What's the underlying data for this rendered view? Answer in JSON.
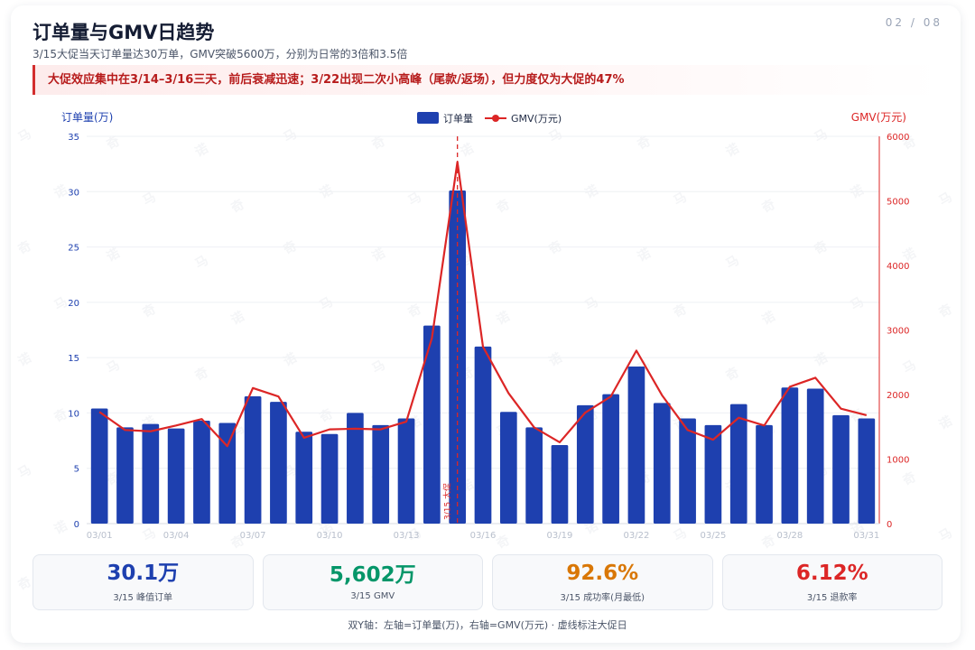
{
  "page_no": "02 / 08",
  "title": "订单量与GMV日趋势",
  "subtitle": "3/15大促当天订单量达30万单，GMV突破5600万，分别为日常的3倍和3.5倍",
  "insight": "大促效应集中在3/14–3/16三天，前后衰减迅速；3/22出现二次小高峰（尾款/返场），但力度仅为大促的47%",
  "watermark": [
    "马",
    "奇",
    "诺"
  ],
  "colors": {
    "orders": "#1e40af",
    "gmv": "#dc2626",
    "kpi_blue": "#1e40af",
    "kpi_green": "#059669",
    "kpi_orange": "#d97706",
    "kpi_red": "#dc2626"
  },
  "chart_data": {
    "type": "bar+line",
    "y_left_label": "订单量(万)",
    "y_right_label": "GMV(万元)",
    "y_left_ticks": [
      "0",
      "5",
      "10",
      "15",
      "20",
      "25",
      "30",
      "35"
    ],
    "y_right_ticks": [
      "0",
      "1000",
      "2000",
      "3000",
      "4000",
      "5000",
      "6000"
    ],
    "y_left_lim": [
      0,
      35
    ],
    "y_right_lim": [
      0,
      6000
    ],
    "legend": {
      "orders": "订单量",
      "gmv": "GMV(万元)",
      "position": "top-center"
    },
    "x": [
      "03/01",
      "03/02",
      "03/03",
      "03/04",
      "03/05",
      "03/06",
      "03/07",
      "03/08",
      "03/09",
      "03/10",
      "03/11",
      "03/12",
      "03/13",
      "03/14",
      "03/15",
      "03/16",
      "03/17",
      "03/18",
      "03/19",
      "03/20",
      "03/21",
      "03/22",
      "03/23",
      "03/24",
      "03/25",
      "03/26",
      "03/27",
      "03/28",
      "03/29",
      "03/30",
      "03/31"
    ],
    "x_tick_labels": [
      "03/01",
      "",
      "",
      "03/04",
      "",
      "",
      "03/07",
      "",
      "",
      "03/10",
      "",
      "",
      "03/13",
      "",
      "",
      "03/16",
      "",
      "",
      "03/19",
      "",
      "",
      "03/22",
      "",
      "",
      "03/25",
      "",
      "",
      "03/28",
      "",
      "",
      "03/31"
    ],
    "series": [
      {
        "name": "订单量",
        "type": "bar",
        "axis": "left",
        "values": [
          10.4,
          8.7,
          9.0,
          8.6,
          9.3,
          9.1,
          11.5,
          11.0,
          8.3,
          8.1,
          10.0,
          8.9,
          9.5,
          17.9,
          30.1,
          16.0,
          10.1,
          8.7,
          7.1,
          10.7,
          11.7,
          14.2,
          10.9,
          9.5,
          8.9,
          10.8,
          8.9,
          12.3,
          12.2,
          9.8,
          9.5
        ]
      },
      {
        "name": "GMV(万元)",
        "type": "line",
        "axis": "right",
        "values": [
          1730,
          1450,
          1430,
          1520,
          1620,
          1200,
          2100,
          1970,
          1330,
          1460,
          1470,
          1460,
          1580,
          2870,
          5602,
          2740,
          2020,
          1490,
          1260,
          1720,
          1970,
          2680,
          1990,
          1450,
          1300,
          1640,
          1520,
          2120,
          2260,
          1780,
          1680
        ]
      }
    ],
    "annotation": {
      "x": "03/15",
      "label": "3/15 大促"
    },
    "grid": true
  },
  "kpis": [
    {
      "value": "30.1万",
      "label": "3/15 峰值订单",
      "color_key": "kpi_blue"
    },
    {
      "value": "5,602万",
      "label": "3/15 GMV",
      "color_key": "kpi_green"
    },
    {
      "value": "92.6%",
      "label": "3/15 成功率(月最低)",
      "color_key": "kpi_orange"
    },
    {
      "value": "6.12%",
      "label": "3/15 退款率",
      "color_key": "kpi_red"
    }
  ],
  "footnote": "双Y轴：左轴=订单量(万)，右轴=GMV(万元) · 虚线标注大促日"
}
